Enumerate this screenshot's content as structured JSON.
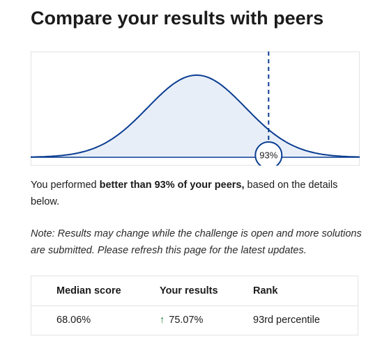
{
  "page": {
    "title": "Compare your results with peers"
  },
  "distribution": {
    "marker_label": "93%",
    "percentile": 93,
    "curve_color": "#0a3d91",
    "fill_color": "#e8eef8"
  },
  "summary": {
    "prefix": "You performed ",
    "emphasis": "better than 93% of your peers,",
    "suffix": " based on the details below."
  },
  "note": "Note: Results may change while the challenge is open and more solutions are submitted. Please refresh this page for the latest updates.",
  "results_table": {
    "headers": {
      "median": "Median score",
      "yours": "Your results",
      "rank": "Rank"
    },
    "values": {
      "median": "68.06%",
      "yours": "75.07%",
      "yours_icon": "arrow-up-icon",
      "rank": "93rd percentile"
    },
    "accent_color": "#1a7f37"
  }
}
